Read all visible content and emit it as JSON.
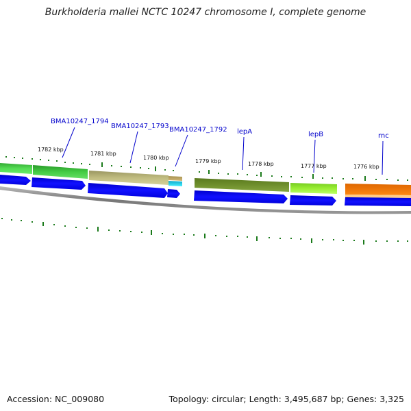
{
  "title": "Burkholderia mallei NCTC 10247 chromosome I, complete genome",
  "footer": {
    "accession": "Accession: NC_009080",
    "summary": "Topology: circular; Length: 3,495,687 bp; Genes: 3,325"
  },
  "ticks": [
    {
      "label": "1782 kbp"
    },
    {
      "label": "1781 kbp"
    },
    {
      "label": "1780 kbp"
    },
    {
      "label": "1779 kbp"
    },
    {
      "label": "1778 kbp"
    },
    {
      "label": "1777 kbp"
    },
    {
      "label": "1776 kbp"
    }
  ],
  "genes": [
    {
      "label": "BMA10247_1794"
    },
    {
      "label": "BMA10247_1793"
    },
    {
      "label": "BMA10247_1792"
    },
    {
      "label": "lepA"
    },
    {
      "label": "lepB"
    },
    {
      "label": "rnc"
    }
  ],
  "colors": {
    "cds_arrow": "#0000ee",
    "backbone": "#808080",
    "tick_mark": "#1a7a1a",
    "gene_label": "#0000cc",
    "feature_bright_green": "#44cc44",
    "feature_tan": "#b8b478",
    "feature_cyan": "#22ccee",
    "feature_olive": "#6b8a2a",
    "feature_light_green": "#99ee33",
    "feature_orange": "#ee7700"
  }
}
